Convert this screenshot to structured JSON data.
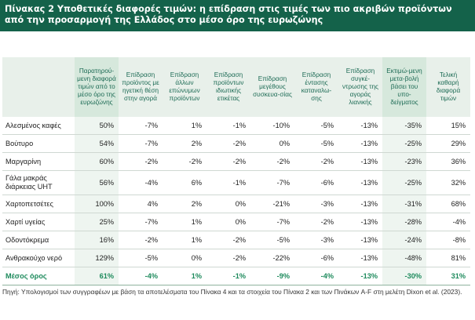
{
  "title": {
    "line1": "Πίνακας 2 Υποθετικές διαφορές τιμών: η επίδραση στις τιμές των πιο ακριβών προϊόντων",
    "line2": "από την προσαρμογή της Ελλάδος στο μέσο όρο της ευρωζώνης"
  },
  "table": {
    "headers": [
      "",
      "Παρατηρού-μενη διαφορά τιμών από το μέσο όρο της ευρωζώνης",
      "Επίδραση προϊόντος με ηγετική θέση στην αγορά",
      "Επίδραση άλλων επώνυμων προϊόντων",
      "Επίδραση προϊόντων ιδιωτικής ετικέτας",
      "Επίδραση μεγέθους συσκευα-σίας",
      "Επίδραση έντασης καταναλω-σης",
      "Επίδραση συγκέ-ντρωσης της αγοράς λιανικής",
      "Εκτιμώ-μενη μετα-βολή βάσει του υπο-δείγματος",
      "Τελική καθαρή διαφορά τιμών"
    ],
    "rows": [
      {
        "label": "Αλεσμένος καφές",
        "values": [
          "50%",
          "-7%",
          "1%",
          "-1%",
          "-10%",
          "-5%",
          "-13%",
          "-35%",
          "15%"
        ]
      },
      {
        "label": "Βούτυρο",
        "values": [
          "54%",
          "-7%",
          "2%",
          "-2%",
          "0%",
          "-5%",
          "-13%",
          "-25%",
          "29%"
        ]
      },
      {
        "label": "Μαργαρίνη",
        "values": [
          "60%",
          "-2%",
          "-2%",
          "-2%",
          "-2%",
          "-2%",
          "-13%",
          "-23%",
          "36%"
        ]
      },
      {
        "label": "Γάλα μακράς διάρκειας  UHT",
        "values": [
          "56%",
          "-4%",
          "6%",
          "-1%",
          "-7%",
          "-6%",
          "-13%",
          "-25%",
          "32%"
        ]
      },
      {
        "label": "Χαρτοπετσέτες",
        "values": [
          "100%",
          "4%",
          "2%",
          "0%",
          "-21%",
          "-3%",
          "-13%",
          "-31%",
          "68%"
        ]
      },
      {
        "label": "Χαρτί υγείας",
        "values": [
          "25%",
          "-7%",
          "1%",
          "0%",
          "-7%",
          "-2%",
          "-13%",
          "-28%",
          "-4%"
        ]
      },
      {
        "label": "Οδοντόκρεμα",
        "values": [
          "16%",
          "-2%",
          "1%",
          "-2%",
          "-5%",
          "-3%",
          "-13%",
          "-24%",
          "-8%"
        ]
      },
      {
        "label": "Ανθρακούχο νερό",
        "values": [
          "129%",
          "-5%",
          "0%",
          "-2%",
          "-22%",
          "-6%",
          "-13%",
          "-48%",
          "81%"
        ]
      }
    ],
    "total": {
      "label": "Μέσος όρος",
      "values": [
        "61%",
        "-4%",
        "1%",
        "-1%",
        "-9%",
        "-4%",
        "-13%",
        "-30%",
        "31%"
      ]
    }
  },
  "note": "Πηγή: Υπολογισμοί των συγγραφέων με βάση τα αποτελέσματα του Πίνακα 4 και τα στοιχεία του Πίνακα 2 και των Πινάκων A-F στη μελέτη Dixon et al. (2023)."
}
